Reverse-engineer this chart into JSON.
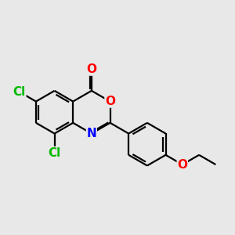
{
  "background_color": "#e8e8e8",
  "atom_colors": {
    "C": "#000000",
    "N": "#0000ff",
    "O": "#ff0000",
    "Cl": "#00bb00"
  },
  "bond_color": "#000000",
  "bond_width": 1.6,
  "figsize": [
    3.0,
    3.0
  ],
  "dpi": 100
}
